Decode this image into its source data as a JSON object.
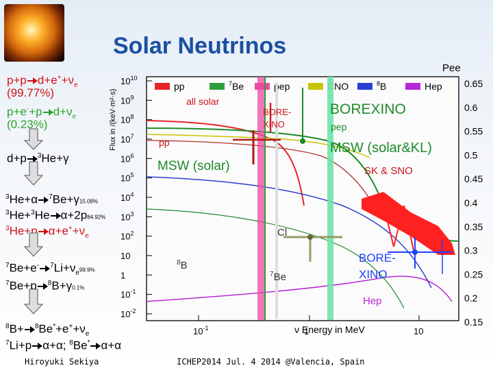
{
  "title": "Solar Neutrinos",
  "colors": {
    "title": "#1b4fa3",
    "pp": "#e8232a",
    "be7": "#2e9e3a",
    "pep": "#e94ba0",
    "cno": "#c9c400",
    "b8": "#2b3fd4",
    "hep": "#b528d6",
    "msw": "#1d8a2a"
  },
  "reactions": {
    "r1": {
      "left": "p+p",
      "right": "d+e",
      "sup": "+",
      "tail": "+ν",
      "sub": "e",
      "pct": "(99.77%)"
    },
    "r2": {
      "left": "p+e",
      "sup": "-",
      "mid": "+p",
      "right": "d+ν",
      "sub": "e",
      "pct": "(0.23%)"
    },
    "r3": {
      "left": "d+p",
      "right": "He+γ",
      "presup": "3"
    },
    "r4": {
      "left": "He+α",
      "right": "Be+γ",
      "presup1": "3",
      "presup2": "7",
      "pct": "15.08%"
    },
    "r5": {
      "left": "He+",
      "presup1": "3",
      "presup2": "3",
      "mid": "He",
      "right": "α+2p",
      "pct": "84.92%"
    },
    "r6": {
      "left": "He+p",
      "presup": "3",
      "right": "α+e",
      "sup": "+",
      "tail": "+ν",
      "sub": "e"
    },
    "r7": {
      "left": "Be+e",
      "presup": "7",
      "sup": "-",
      "right": "Li+ν",
      "presup2": "7",
      "sub": "e",
      "pct": "99.9%"
    },
    "r8": {
      "left": "Be+p",
      "presup": "7",
      "right": "B+γ",
      "presup2": "8",
      "pct": "0.1%"
    },
    "r9": {
      "left": "B+",
      "presup": "8",
      "right": "Be",
      "presup2": "8",
      "sup": "*",
      "tail": "+e",
      "sup2": "+",
      "tail2": "+ν",
      "sub": "e"
    },
    "r10": {
      "text1": "Li+p",
      "presup": "7",
      "right": "α+α; ",
      "be": "Be",
      "presup2": "8",
      "sup": "*",
      "right2": "α+α"
    }
  },
  "chart_data": {
    "type": "line",
    "xlabel": "ν Energy in MeV",
    "ylabel": "Flux in /(keV·m²·s)",
    "legend": [
      "pp",
      "7Be",
      "pep",
      "CNO",
      "8B",
      "Hep"
    ],
    "x_ticks": [
      "10^-1",
      "1",
      "10"
    ],
    "y_ticks": [
      "10^10",
      "10^9",
      "10^8",
      "10^7",
      "10^6",
      "10^5",
      "10^4",
      "10^3",
      "10^2",
      "10",
      "1",
      "10^-1",
      "10^-2"
    ],
    "pee_label": "Pee",
    "pee_ticks": [
      "0.65",
      "0.6",
      "0.55",
      "0.5",
      "0.45",
      "0.4",
      "0.35",
      "0.3",
      "0.25",
      "0.2",
      "0.15"
    ],
    "annotations": {
      "all_solar": "all solar",
      "pp": "pp",
      "msw_solar": "MSW (solar)",
      "borexino_small": "BORE-\nXINO",
      "borexino_big": "BOREXINO",
      "pep": "pep",
      "msw_solar_kl": "MSW (solar&KL)",
      "sk_sno": "SK & SNO",
      "cl": "Cl",
      "b8": "8B",
      "be7": "7Be",
      "borexino_b8": "BORE-\nXINO",
      "hep": "Hep"
    }
  },
  "footer": {
    "left": "Hiroyuki Sekiya",
    "center": "ICHEP2014  Jul. 4 2014  @Valencia, Spain"
  }
}
